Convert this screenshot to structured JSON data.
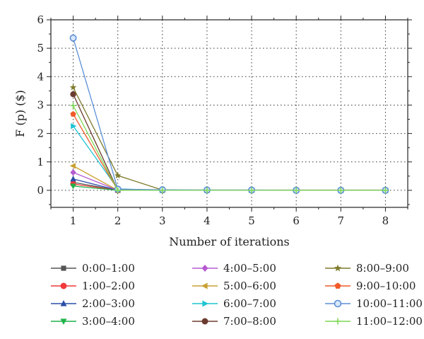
{
  "chart_data": {
    "type": "line",
    "xlabel": "Number of iterations",
    "ylabel": "F (p) ($)",
    "x": [
      1,
      2,
      3,
      4,
      5,
      6,
      7,
      8
    ],
    "xlim": [
      0.5,
      8.5
    ],
    "ylim": [
      -0.6,
      6
    ],
    "xticks": [
      1,
      2,
      3,
      4,
      5,
      6,
      7,
      8
    ],
    "yticks": [
      0,
      1,
      2,
      3,
      4,
      5,
      6
    ],
    "grid": "dotted",
    "legend_position": "bottom",
    "series": [
      {
        "name": "0:00–1:00",
        "color": "#555555",
        "marker": "square",
        "values": [
          0.28,
          0.0,
          0.0,
          0.0,
          0.0,
          0.0,
          0.0,
          0.0
        ]
      },
      {
        "name": "1:00–2:00",
        "color": "#f03a3a",
        "marker": "circle",
        "values": [
          0.22,
          0.0,
          0.0,
          0.0,
          0.0,
          0.0,
          0.0,
          0.0
        ]
      },
      {
        "name": "2:00–3:00",
        "color": "#2b4fa8",
        "marker": "triangle-up",
        "values": [
          0.4,
          0.0,
          0.0,
          0.0,
          0.0,
          0.0,
          0.0,
          0.0
        ]
      },
      {
        "name": "3:00–4:00",
        "color": "#1fb24a",
        "marker": "triangle-down",
        "values": [
          0.15,
          0.0,
          0.0,
          0.0,
          0.0,
          0.0,
          0.0,
          0.0
        ]
      },
      {
        "name": "4:00–5:00",
        "color": "#b55ad1",
        "marker": "diamond",
        "values": [
          0.63,
          0.0,
          0.0,
          0.0,
          0.0,
          0.0,
          0.0,
          0.0
        ]
      },
      {
        "name": "5:00–6:00",
        "color": "#c8a031",
        "marker": "triangle-left",
        "values": [
          0.86,
          0.0,
          0.0,
          0.0,
          0.0,
          0.0,
          0.0,
          0.0
        ]
      },
      {
        "name": "6:00–7:00",
        "color": "#1fc3d2",
        "marker": "triangle-right",
        "values": [
          2.26,
          0.05,
          0.0,
          0.0,
          0.0,
          0.0,
          0.0,
          0.0
        ]
      },
      {
        "name": "7:00–8:00",
        "color": "#6b3b2f",
        "marker": "circle",
        "values": [
          3.38,
          0.0,
          0.0,
          0.0,
          0.0,
          0.0,
          0.0,
          0.0
        ]
      },
      {
        "name": "8:00–9:00",
        "color": "#7d7a2b",
        "marker": "star",
        "values": [
          3.62,
          0.52,
          0.01,
          0.01,
          0.01,
          0.01,
          0.01,
          0.01
        ]
      },
      {
        "name": "9:00–10:00",
        "color": "#f05a28",
        "marker": "pentagon",
        "values": [
          2.68,
          0.0,
          0.0,
          0.0,
          0.0,
          0.0,
          0.0,
          0.0
        ]
      },
      {
        "name": "10:00–11:00",
        "color": "#5b8fd6",
        "marker": "ring",
        "values": [
          5.36,
          0.04,
          0.02,
          0.01,
          0.01,
          0.0,
          0.0,
          0.0
        ]
      },
      {
        "name": "11:00–12:00",
        "color": "#7ed957",
        "marker": "plus",
        "values": [
          2.98,
          0.0,
          0.0,
          0.0,
          0.0,
          0.0,
          0.0,
          0.0
        ]
      }
    ]
  }
}
